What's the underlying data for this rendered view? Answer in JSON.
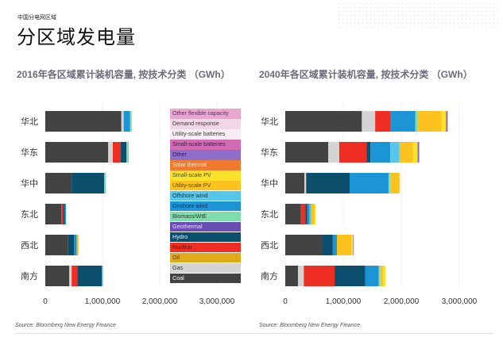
{
  "header": {
    "eyebrow": "中国分电网区域",
    "title": "分区域发电量"
  },
  "legend": {
    "items": [
      {
        "label": "Other flexible capacity",
        "color": "#e9a7d0",
        "text": "#5a2f6a"
      },
      {
        "label": "Demand response",
        "color": "#f1d6e6",
        "text": "#3a3a3a"
      },
      {
        "label": "Utility-scale batteries",
        "color": "#f6eef3",
        "text": "#3a3a3a"
      },
      {
        "label": "Small-scale batteries",
        "color": "#d36bb4",
        "text": "#3a2040"
      },
      {
        "label": "Other",
        "color": "#8f6ec9",
        "text": "#2e2050"
      },
      {
        "label": "Solar thermal",
        "color": "#f07a2e",
        "text": "#ffe9d6"
      },
      {
        "label": "Small-scale PV",
        "color": "#fbe22a",
        "text": "#4a4a20"
      },
      {
        "label": "Utility-scale PV",
        "color": "#fcc21e",
        "text": "#5a4a10"
      },
      {
        "label": "Offshore wind",
        "color": "#58c6e8",
        "text": "#10303a"
      },
      {
        "label": "Onshore wind",
        "color": "#1b95d6",
        "text": "#0b2f5a"
      },
      {
        "label": "Biomass/WtE",
        "color": "#7fdcab",
        "text": "#1e3e2a"
      },
      {
        "label": "Geothermal",
        "color": "#6b4eb3",
        "text": "#e8e0ff"
      },
      {
        "label": "Hydro",
        "color": "#0b4f6c",
        "text": "#e0f0ff"
      },
      {
        "label": "Nuclear",
        "color": "#ee2d23",
        "text": "#5a1a10"
      },
      {
        "label": "Oil",
        "color": "#e2aa18",
        "text": "#4a3510"
      },
      {
        "label": "Gas",
        "color": "#d4d4d4",
        "text": "#333333"
      },
      {
        "label": "Coal",
        "color": "#434343",
        "text": "#ffffff"
      }
    ]
  },
  "chart_data": [
    {
      "type": "bar",
      "orientation": "horizontal",
      "stacked": true,
      "title": "2016年各区域累计装机容量, 按技术分类 （GWh）",
      "xlabel": "",
      "ylabel": "",
      "xlim": [
        0,
        3500000
      ],
      "xticks": [
        0,
        1000000,
        2000000,
        3000000
      ],
      "xtick_labels": [
        "0",
        "1,000,000",
        "2,000,000",
        "3,000,000"
      ],
      "categories": [
        "华北",
        "华东",
        "华中",
        "东北",
        "西北",
        "南方"
      ],
      "series": [
        {
          "name": "Coal",
          "values": [
            1330000,
            1100000,
            460000,
            280000,
            400000,
            420000
          ]
        },
        {
          "name": "Gas",
          "values": [
            40000,
            80000,
            0,
            0,
            0,
            40000
          ]
        },
        {
          "name": "Nuclear",
          "values": [
            0,
            140000,
            0,
            30000,
            0,
            100000
          ]
        },
        {
          "name": "Hydro",
          "values": [
            0,
            100000,
            570000,
            30000,
            100000,
            430000
          ]
        },
        {
          "name": "Onshore wind",
          "values": [
            110000,
            0,
            0,
            20000,
            50000,
            0
          ]
        },
        {
          "name": "Offshore wind",
          "values": [
            0,
            0,
            0,
            0,
            0,
            10000
          ]
        },
        {
          "name": "Biomass/WtE",
          "values": [
            20000,
            40000,
            30000,
            0,
            0,
            10000
          ]
        },
        {
          "name": "Utility-scale PV",
          "values": [
            10000,
            0,
            0,
            0,
            30000,
            0
          ]
        }
      ],
      "source": "Source: Bloomberg New Energy Finance"
    },
    {
      "type": "bar",
      "orientation": "horizontal",
      "stacked": true,
      "title": "2040年各区域累计装机容量, 按技术分类 （GWh）",
      "xlabel": "",
      "ylabel": "",
      "xlim": [
        0,
        3400000
      ],
      "xticks": [
        0,
        1000000,
        2000000,
        3000000
      ],
      "xtick_labels": [
        "0",
        "1,000,000",
        "2,000,000",
        "3,000,000"
      ],
      "categories": [
        "华北",
        "华东",
        "华中",
        "东北",
        "西北",
        "南方"
      ],
      "series": [
        {
          "name": "Coal",
          "values": [
            1320000,
            740000,
            330000,
            270000,
            630000,
            220000
          ]
        },
        {
          "name": "Gas",
          "values": [
            230000,
            190000,
            30000,
            0,
            0,
            100000
          ]
        },
        {
          "name": "Nuclear",
          "values": [
            270000,
            470000,
            0,
            80000,
            0,
            530000
          ]
        },
        {
          "name": "Hydro",
          "values": [
            0,
            70000,
            750000,
            30000,
            190000,
            530000
          ]
        },
        {
          "name": "Onshore wind",
          "values": [
            420000,
            340000,
            670000,
            40000,
            70000,
            230000
          ]
        },
        {
          "name": "Offshore wind",
          "values": [
            0,
            160000,
            0,
            30000,
            0,
            0
          ]
        },
        {
          "name": "Biomass/WtE",
          "values": [
            50000,
            0,
            30000,
            0,
            0,
            30000
          ]
        },
        {
          "name": "Utility-scale PV",
          "values": [
            400000,
            230000,
            160000,
            50000,
            250000,
            50000
          ]
        },
        {
          "name": "Small-scale PV",
          "values": [
            80000,
            80000,
            0,
            20000,
            30000,
            40000
          ]
        },
        {
          "name": "Other",
          "values": [
            30000,
            30000,
            0,
            0,
            10000,
            0
          ]
        }
      ],
      "source": "Source: Bloomberg New Energy Finance"
    }
  ]
}
